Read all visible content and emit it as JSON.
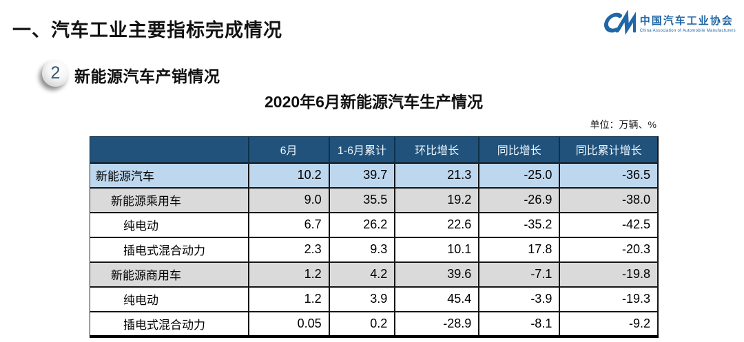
{
  "page": {
    "main_title": "一、汽车工业主要指标完成情况",
    "section_number": "2",
    "section_title": "新能源汽车产销情况",
    "table_title": "2020年6月新能源汽车生产情况",
    "unit_note": "单位：万辆、%"
  },
  "logo": {
    "name_cn": "中国汽车工业协会",
    "name_en": "China Association of Automobile Manufacturers"
  },
  "colors": {
    "header_bg": "#20527B",
    "row_highlight_blue": "#BDD7EE",
    "row_gray": "#DADADA",
    "logo_blue": "#2166A5",
    "border_black": "#151515"
  },
  "chart_data": {
    "type": "table",
    "title": "2020年6月新能源汽车生产情况",
    "unit": "万辆、%",
    "columns": [
      "",
      "6月",
      "1-6月累计",
      "环比增长",
      "同比增长",
      "同比累计增长"
    ],
    "rows": [
      {
        "label": "新能源汽车",
        "indent": 0,
        "style": "blue",
        "values": [
          "10.2",
          "39.7",
          "21.3",
          "-25.0",
          "-36.5"
        ]
      },
      {
        "label": "新能源乘用车",
        "indent": 1,
        "style": "gray",
        "values": [
          "9.0",
          "35.5",
          "19.2",
          "-26.9",
          "-38.0"
        ]
      },
      {
        "label": "纯电动",
        "indent": 2,
        "style": "white",
        "values": [
          "6.7",
          "26.2",
          "22.6",
          "-35.2",
          "-42.5"
        ]
      },
      {
        "label": "插电式混合动力",
        "indent": 2,
        "style": "white",
        "values": [
          "2.3",
          "9.3",
          "10.1",
          "17.8",
          "-20.3"
        ]
      },
      {
        "label": "新能源商用车",
        "indent": 1,
        "style": "gray",
        "values": [
          "1.2",
          "4.2",
          "39.6",
          "-7.1",
          "-19.8"
        ]
      },
      {
        "label": "纯电动",
        "indent": 2,
        "style": "white",
        "values": [
          "1.2",
          "3.9",
          "45.4",
          "-3.9",
          "-19.3"
        ]
      },
      {
        "label": "插电式混合动力",
        "indent": 2,
        "style": "white",
        "values": [
          "0.05",
          "0.2",
          "-28.9",
          "-8.1",
          "-9.2"
        ]
      }
    ]
  }
}
